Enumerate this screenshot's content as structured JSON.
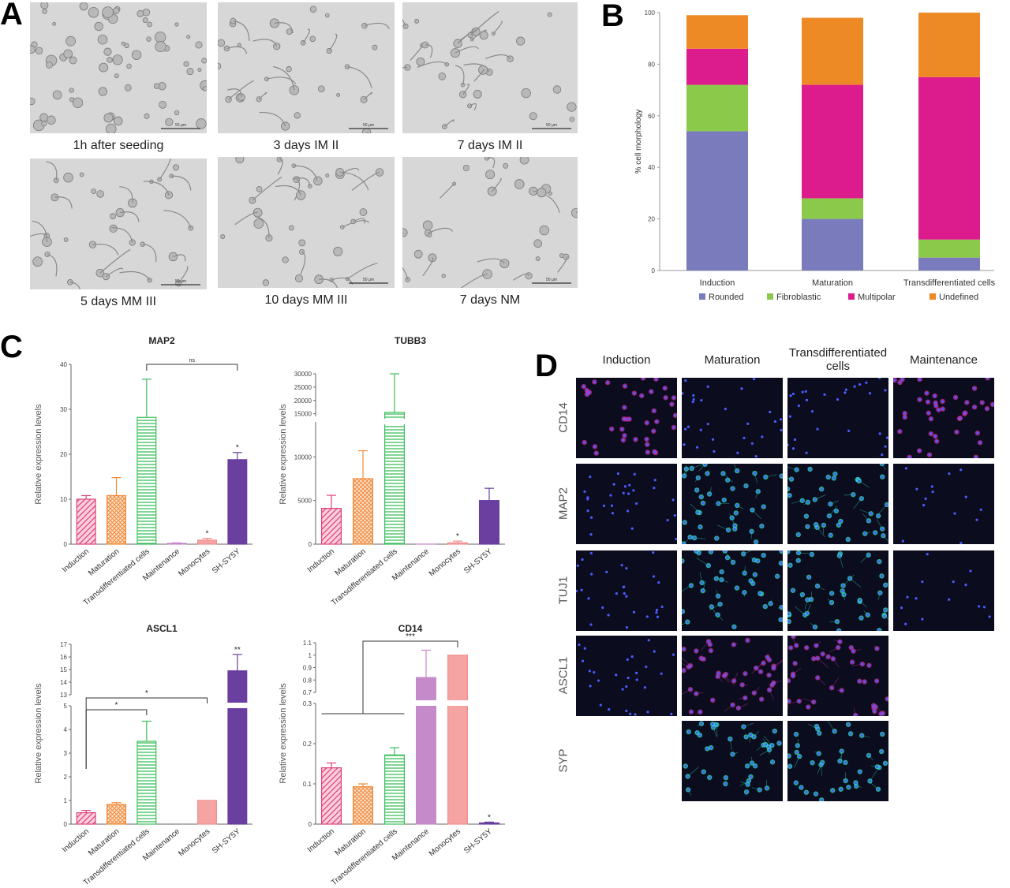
{
  "panels": {
    "A": "A",
    "B": "B",
    "C": "C",
    "D": "D"
  },
  "panel_a": {
    "images": [
      {
        "caption": "1h after seeding",
        "scale_bar": "50 µm"
      },
      {
        "caption": "3 days IM II",
        "scale_bar": "50 µm"
      },
      {
        "caption": "7 days IM II",
        "scale_bar": "50 µm"
      },
      {
        "caption": "5 days MM III",
        "scale_bar": "50 µm"
      },
      {
        "caption": "10 days MM III",
        "scale_bar": "50 µm"
      },
      {
        "caption": "7 days NM",
        "scale_bar": "50 µm"
      }
    ]
  },
  "panel_d": {
    "columns": [
      "Induction",
      "Maturation",
      "Transdifferentiated cells",
      "Maintenance"
    ],
    "rows": [
      "CD14",
      "MAP2",
      "TUJ1",
      "ASCL1",
      "SYP"
    ],
    "present": [
      [
        true,
        true,
        true,
        true
      ],
      [
        true,
        true,
        true,
        true
      ],
      [
        true,
        true,
        true,
        true
      ],
      [
        true,
        true,
        true,
        false
      ],
      [
        false,
        true,
        true,
        false
      ]
    ],
    "colors": {
      "background": "#0b0c1e",
      "nuclei": "#4a5cff",
      "cd14": "#d22c9c",
      "neuronal": "#2fe0c0",
      "ascl1": "#c8329a"
    }
  },
  "chart_data": [
    {
      "type": "bar",
      "stacked": true,
      "panel": "B",
      "categories": [
        "Induction",
        "Maturation",
        "Transdifferentiated cells"
      ],
      "ylabel": "% cell morphology",
      "ylim": [
        0,
        100
      ],
      "yticks": [
        0,
        20,
        40,
        60,
        80,
        100
      ],
      "legend_position": "bottom",
      "series": [
        {
          "name": "Rounded",
          "color": "#7a7bbd",
          "values": [
            54,
            20,
            5
          ]
        },
        {
          "name": "Fibroblastic",
          "color": "#8bc94a",
          "values": [
            18,
            8,
            7
          ]
        },
        {
          "name": "Multipolar",
          "color": "#dc1c8c",
          "values": [
            14,
            44,
            63
          ]
        },
        {
          "name": "Undefined",
          "color": "#ee8a26",
          "values": [
            13,
            26,
            25
          ]
        }
      ]
    },
    {
      "type": "bar",
      "panel": "C",
      "title": "MAP2",
      "ylabel": "Relative expression levels",
      "categories": [
        "Induction",
        "Maturation",
        "Transdifferentiated cells",
        "Maintenance",
        "Monocytes",
        "SH-SY5Y"
      ],
      "values": [
        10.0,
        10.8,
        28.2,
        0.2,
        0.9,
        18.8
      ],
      "errors": [
        0.8,
        4.0,
        8.5,
        0.1,
        0.4,
        1.6
      ],
      "ylim": [
        0,
        40
      ],
      "yticks": [
        0,
        10,
        20,
        30,
        40
      ],
      "annotations": [
        {
          "type": "bracket",
          "from": 2,
          "to": 5,
          "label": "ns"
        },
        {
          "type": "star",
          "at": 4,
          "label": "*"
        },
        {
          "type": "star",
          "at": 5,
          "label": "*"
        }
      ]
    },
    {
      "type": "bar",
      "panel": "C",
      "title": "TUBB3",
      "ylabel": "Relative expression levels",
      "categories": [
        "Induction",
        "Maturation",
        "Transdifferentiated cells",
        "Maintenance",
        "Monocytes",
        "SH-SY5Y"
      ],
      "values": [
        4100,
        7500,
        15500,
        10,
        150,
        5000
      ],
      "errors": [
        1500,
        3200,
        16000,
        0,
        200,
        1400
      ],
      "broken_axis": {
        "lower": [
          0,
          14000
        ],
        "upper": [
          14000,
          30000
        ]
      },
      "yticks_lower": [
        0,
        5000,
        10000
      ],
      "yticks_upper": [
        15000,
        20000,
        25000,
        30000
      ],
      "annotations": [
        {
          "type": "star",
          "at": 4,
          "label": "*"
        }
      ]
    },
    {
      "type": "bar",
      "panel": "C",
      "title": "ASCL1",
      "ylabel": "Relative expression levels",
      "categories": [
        "Induction",
        "Maturation",
        "Transdifferentiated cells",
        "Maintenance",
        "Monocytes",
        "SH-SY5Y"
      ],
      "values": [
        0.48,
        0.83,
        3.5,
        0,
        1.0,
        14.9
      ],
      "errors": [
        0.1,
        0.08,
        0.85,
        0,
        0,
        1.3
      ],
      "broken_axis": {
        "lower": [
          0,
          5
        ],
        "upper": [
          13,
          17
        ]
      },
      "yticks_lower": [
        0,
        1,
        2,
        3,
        4,
        5
      ],
      "yticks_upper": [
        13,
        14,
        15,
        16,
        17
      ],
      "annotations": [
        {
          "type": "bracket",
          "from": 0,
          "to": 2,
          "label": "*"
        },
        {
          "type": "bracket",
          "from": 0,
          "to": 4,
          "label": "*"
        },
        {
          "type": "star",
          "at": 5,
          "label": "**"
        }
      ]
    },
    {
      "type": "bar",
      "panel": "C",
      "title": "CD14",
      "ylabel": "Relative expression levels",
      "categories": [
        "Induction",
        "Maturation",
        "Transdifferentiated cells",
        "Maintenance",
        "Monocytes",
        "SH-SY5Y"
      ],
      "values": [
        0.14,
        0.093,
        0.172,
        0.82,
        1.0,
        0.003
      ],
      "errors": [
        0.012,
        0.007,
        0.018,
        0.22,
        0,
        0.002
      ],
      "broken_axis": {
        "lower": [
          0,
          0.3
        ],
        "upper": [
          0.7,
          1.1
        ]
      },
      "yticks_lower": [
        0.0,
        0.1,
        0.2,
        0.3
      ],
      "yticks_upper": [
        0.7,
        0.8,
        0.9,
        1.0,
        1.1
      ],
      "annotations": [
        {
          "type": "bracket",
          "group": [
            0,
            2
          ],
          "to": 4,
          "label": "***"
        },
        {
          "type": "star",
          "at": 5,
          "label": "*"
        }
      ]
    }
  ]
}
